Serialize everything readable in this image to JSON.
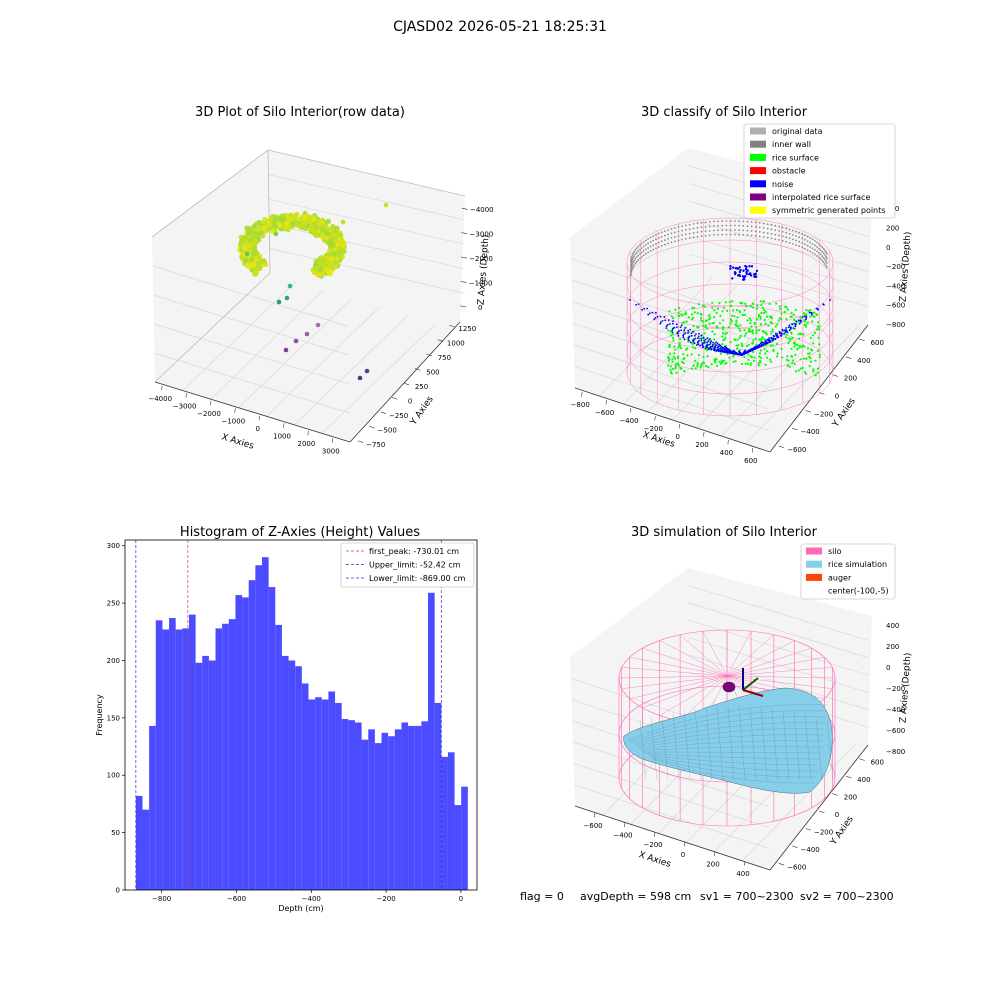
{
  "figure_title": "CJASD02 2026-05-21 18:25:31",
  "footer": {
    "flag": "flag = 0",
    "avg_depth": "avgDepth = 598 cm",
    "sv1": "sv1 = 700~2300",
    "sv2": "sv2 = 700~2300"
  },
  "colors": {
    "histogram_bar": "#4b4bff",
    "first_peak_line": "#e0362c",
    "limit_line": "#2c2ce0",
    "rice_surface": "#00ff00",
    "noise": "#0000ff",
    "inner_wall": "#808080",
    "silo": "#ff69b4",
    "rice_simulation": "#87ceeb",
    "auger": "#ff4500"
  },
  "chart_data": [
    {
      "type": "scatter",
      "title": "3D Plot of Silo Interior(row data)",
      "xlabel": "X Axies",
      "ylabel": "Y Axies",
      "zlabel": "Z Axies (Depth)",
      "x_ticks": [
        "−4000",
        "−3000",
        "−2000",
        "−1000",
        "0",
        "1000",
        "2000",
        "3000"
      ],
      "y_ticks": [
        "−750",
        "−500",
        "−250",
        "0",
        "250",
        "500",
        "750",
        "1000",
        "1250"
      ],
      "z_ticks": [
        "−4000",
        "−3000",
        "−2000",
        "−1000",
        "0"
      ],
      "colormap": "viridis"
    },
    {
      "type": "scatter",
      "title": "3D classify of Silo Interior",
      "xlabel": "X Axies",
      "ylabel": "Y Axies",
      "zlabel": "Z Axies (Depth)",
      "x_ticks": [
        "−800",
        "−600",
        "−400",
        "−200",
        "0",
        "200",
        "400",
        "600"
      ],
      "y_ticks": [
        "−600",
        "−400",
        "−200",
        "0",
        "200",
        "400",
        "600"
      ],
      "z_ticks": [
        "−800",
        "−600",
        "−400",
        "−200",
        "0",
        "200",
        "400"
      ],
      "legend": [
        {
          "name": "original data",
          "color": "#b0b0b0"
        },
        {
          "name": "inner wall",
          "color": "#808080"
        },
        {
          "name": "rice surface",
          "color": "#00ff00"
        },
        {
          "name": "obstacle",
          "color": "#ff0000"
        },
        {
          "name": "noise",
          "color": "#0000ff"
        },
        {
          "name": "interpolated rice surface",
          "color": "#800080"
        },
        {
          "name": "symmetric generated points",
          "color": "#ffff00"
        }
      ],
      "legend_position": "top-right"
    },
    {
      "type": "bar",
      "title": "Histogram of Z-Axies (Height) Values",
      "xlabel": "Depth (cm)",
      "ylabel": "Frequency",
      "xlim": [
        -898,
        43
      ],
      "ylim": [
        0,
        305
      ],
      "x_ticks": [
        -800,
        -600,
        -400,
        -200,
        0
      ],
      "x_tick_labels": [
        "−800",
        "−600",
        "−400",
        "−200",
        "0"
      ],
      "y_ticks": [
        0,
        50,
        100,
        150,
        200,
        250,
        300
      ],
      "bin_start": -869,
      "bin_width": 17.75,
      "values": [
        82,
        70,
        143,
        235,
        227,
        237,
        227,
        228,
        240,
        198,
        204,
        200,
        228,
        232,
        236,
        257,
        255,
        270,
        283,
        290,
        264,
        231,
        204,
        200,
        195,
        180,
        166,
        168,
        166,
        173,
        163,
        149,
        148,
        146,
        131,
        140,
        128,
        137,
        134,
        140,
        146,
        143,
        143,
        147,
        259,
        163,
        116,
        120,
        74,
        90
      ],
      "vlines": [
        {
          "x": -730.01,
          "label": "first_peak: -730.01 cm",
          "color": "#e0362c"
        },
        {
          "x": -52.42,
          "label": "Upper_limit: -52.42 cm",
          "color": "#2c2ce0"
        },
        {
          "x": -869.0,
          "label": "Lower_limit: -869.00 cm",
          "color": "#2c2ce0"
        }
      ],
      "legend_position": "top-right"
    },
    {
      "type": "area",
      "title": "3D simulation of Silo Interior",
      "xlabel": "X Axies",
      "ylabel": "Y Axies",
      "zlabel": "Z Axies (Depth)",
      "x_ticks": [
        "−600",
        "−400",
        "−200",
        "0",
        "200",
        "400"
      ],
      "y_ticks": [
        "−600",
        "−400",
        "−200",
        "0",
        "200",
        "400",
        "600"
      ],
      "z_ticks": [
        "−800",
        "−600",
        "−400",
        "−200",
        "0",
        "200",
        "400"
      ],
      "legend": [
        {
          "name": "silo",
          "color": "#ff69b4"
        },
        {
          "name": "rice simulation",
          "color": "#87ceeb"
        },
        {
          "name": "auger",
          "color": "#ff4500"
        },
        {
          "name": "center(-100,-5)",
          "color": ""
        }
      ],
      "legend_position": "top-right"
    }
  ]
}
